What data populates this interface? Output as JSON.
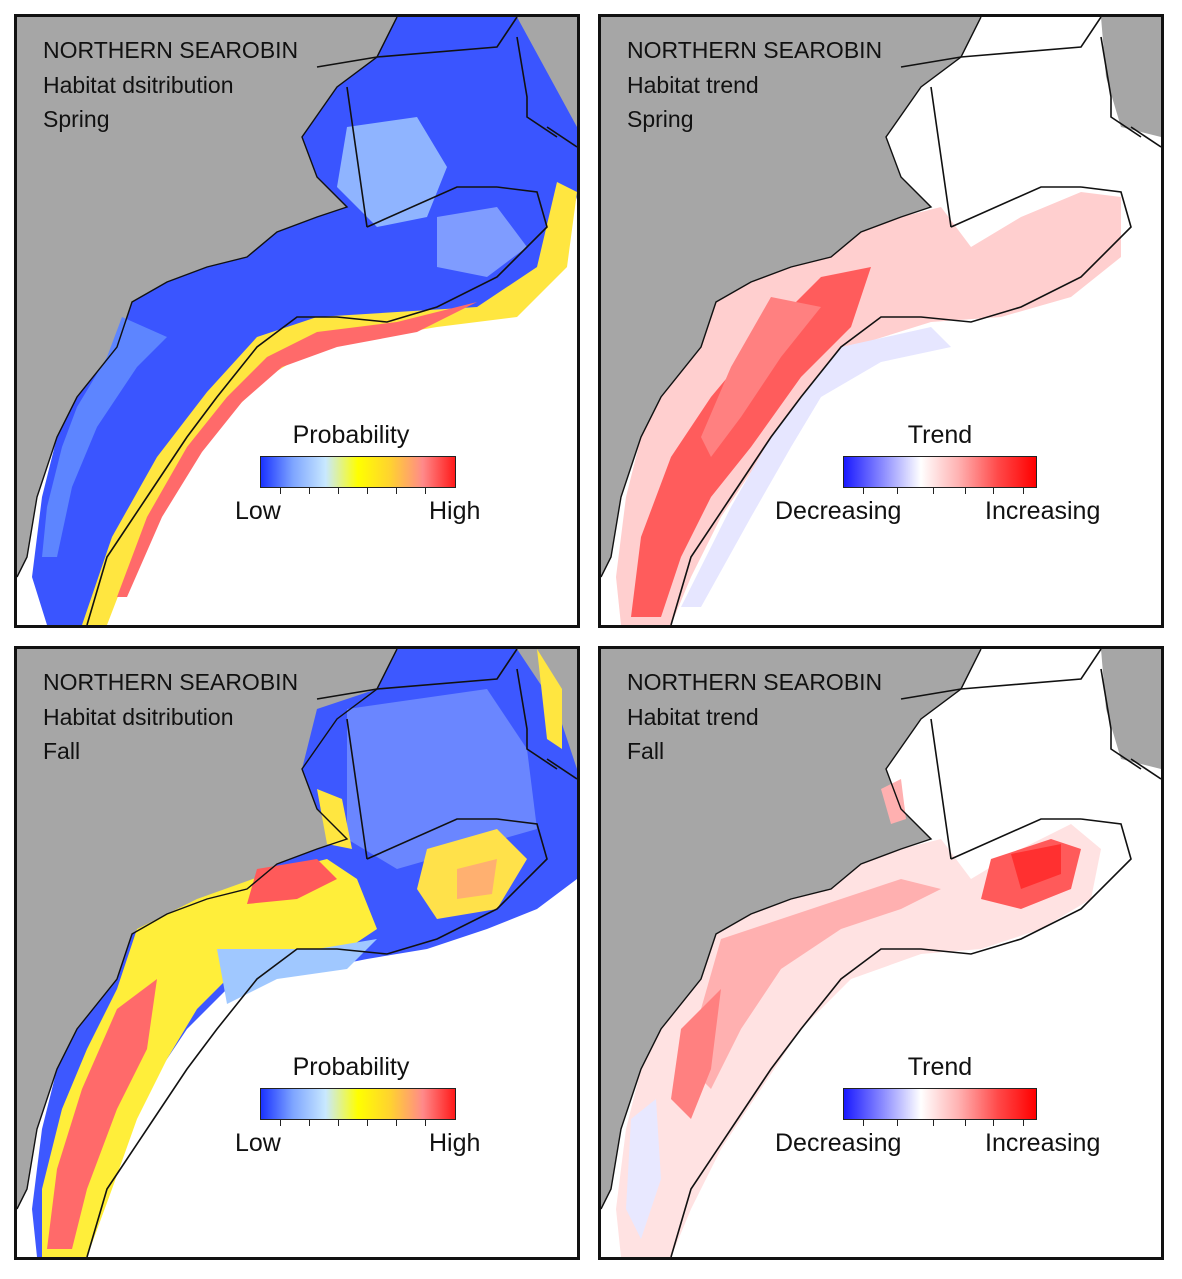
{
  "colors": {
    "land": "#a6a6a6",
    "ocean": "#ffffff",
    "outline": "#111111",
    "prob_ramp": [
      "#1a33ff",
      "#7fa6ff",
      "#c8e8ff",
      "#ffff00",
      "#ffd230",
      "#ff8a8a",
      "#ff1a1a"
    ],
    "trend_ramp": [
      "#1a1aff",
      "#8a8aff",
      "#ffffff",
      "#ffb0b0",
      "#ff4a4a",
      "#ff0000"
    ]
  },
  "panels": [
    {
      "id": "spring-distribution",
      "kind": "distribution",
      "species": "NORTHERN SEAROBIN",
      "map_type": "Habitat dsitribution",
      "season": "Spring",
      "legend": {
        "title": "Probability",
        "low": "Low",
        "high": "High"
      }
    },
    {
      "id": "spring-trend",
      "kind": "trend",
      "species": "NORTHERN SEAROBIN",
      "map_type": "Habitat trend",
      "season": "Spring",
      "legend": {
        "title": "Trend",
        "low": "Decreasing",
        "high": "Increasing"
      }
    },
    {
      "id": "fall-distribution",
      "kind": "distribution",
      "species": "NORTHERN SEAROBIN",
      "map_type": "Habitat dsitribution",
      "season": "Fall",
      "legend": {
        "title": "Probability",
        "low": "Low",
        "high": "High"
      }
    },
    {
      "id": "fall-trend",
      "kind": "trend",
      "species": "NORTHERN SEAROBIN",
      "map_type": "Habitat trend",
      "season": "Fall",
      "legend": {
        "title": "Trend",
        "low": "Decreasing",
        "high": "Increasing"
      }
    }
  ]
}
